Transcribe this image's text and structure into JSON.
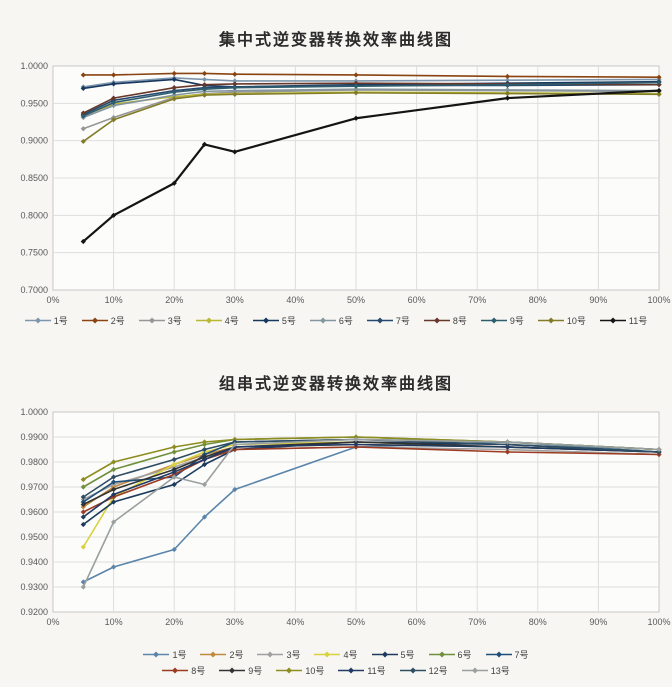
{
  "page": {
    "background": "#f7f6f3"
  },
  "chart_data": [
    {
      "type": "line",
      "title": "集中式逆变器转换效率曲线图",
      "xlabel": "",
      "ylabel": "",
      "x_ticks": [
        "0%",
        "10%",
        "20%",
        "30%",
        "40%",
        "50%",
        "60%",
        "70%",
        "80%",
        "90%",
        "100%"
      ],
      "x_range": [
        0,
        100
      ],
      "x": [
        5,
        10,
        20,
        25,
        30,
        50,
        75,
        100
      ],
      "ylim": [
        0.7,
        1.0
      ],
      "y_ticks": [
        "1.0000",
        "0.9500",
        "0.9000",
        "0.8500",
        "0.8000",
        "0.7500",
        "0.7000"
      ],
      "grid": true,
      "legend_position": "bottom",
      "legend_rows": [
        11
      ],
      "series": [
        {
          "name": "1号",
          "color": "#7d96ad",
          "values": [
            0.972,
            0.978,
            0.984,
            0.982,
            0.98,
            0.98,
            0.981,
            0.982
          ]
        },
        {
          "name": "2号",
          "color": "#8a4411",
          "values": [
            0.988,
            0.988,
            0.99,
            0.99,
            0.989,
            0.988,
            0.986,
            0.985
          ]
        },
        {
          "name": "3号",
          "color": "#969696",
          "values": [
            0.916,
            0.931,
            0.958,
            0.963,
            0.965,
            0.968,
            0.967,
            0.966
          ]
        },
        {
          "name": "4号",
          "color": "#b9b832",
          "values": [
            0.934,
            0.949,
            0.959,
            0.962,
            0.963,
            0.965,
            0.964,
            0.963
          ]
        },
        {
          "name": "5号",
          "color": "#17375e",
          "values": [
            0.97,
            0.976,
            0.982,
            0.974,
            0.972,
            0.975,
            0.977,
            0.979
          ]
        },
        {
          "name": "6号",
          "color": "#83959d",
          "values": [
            0.931,
            0.947,
            0.961,
            0.966,
            0.967,
            0.969,
            0.968,
            0.967
          ]
        },
        {
          "name": "7号",
          "color": "#27496d",
          "values": [
            0.935,
            0.954,
            0.967,
            0.971,
            0.972,
            0.974,
            0.974,
            0.975
          ]
        },
        {
          "name": "8号",
          "color": "#67372a",
          "values": [
            0.937,
            0.957,
            0.971,
            0.975,
            0.976,
            0.977,
            0.976,
            0.975
          ]
        },
        {
          "name": "9号",
          "color": "#2e5d6e",
          "values": [
            0.933,
            0.951,
            0.965,
            0.969,
            0.971,
            0.973,
            0.975,
            0.978
          ]
        },
        {
          "name": "10号",
          "color": "#827c28",
          "values": [
            0.899,
            0.928,
            0.956,
            0.961,
            0.962,
            0.964,
            0.963,
            0.962
          ]
        },
        {
          "name": "11号",
          "color": "#141414",
          "values": [
            0.765,
            0.8,
            0.843,
            0.895,
            0.885,
            0.93,
            0.957,
            0.967
          ]
        }
      ]
    },
    {
      "type": "line",
      "title": "组串式逆变器转换效率曲线图",
      "xlabel": "",
      "ylabel": "",
      "x_ticks": [
        "0%",
        "10%",
        "20%",
        "30%",
        "40%",
        "50%",
        "60%",
        "70%",
        "80%",
        "90%",
        "100%"
      ],
      "x_range": [
        0,
        100
      ],
      "x": [
        5,
        10,
        20,
        25,
        30,
        50,
        75,
        100
      ],
      "ylim": [
        0.92,
        1.0
      ],
      "y_ticks": [
        "1.0000",
        "0.9900",
        "0.9800",
        "0.9700",
        "0.9600",
        "0.9500",
        "0.9400",
        "0.9300",
        "0.9200"
      ],
      "grid": true,
      "legend_position": "bottom",
      "legend_rows": [
        7,
        6
      ],
      "series": [
        {
          "name": "1号",
          "color": "#5b85aa",
          "values": [
            0.932,
            0.938,
            0.945,
            0.958,
            0.969,
            0.986,
            0.988,
            0.984
          ]
        },
        {
          "name": "2号",
          "color": "#c08a3e",
          "values": [
            0.962,
            0.97,
            0.979,
            0.983,
            0.986,
            0.987,
            0.986,
            0.984
          ]
        },
        {
          "name": "3号",
          "color": "#a0a0a0",
          "values": [
            0.965,
            0.971,
            0.978,
            0.982,
            0.985,
            0.986,
            0.985,
            0.983
          ]
        },
        {
          "name": "4号",
          "color": "#d9d23f",
          "values": [
            0.946,
            0.966,
            0.979,
            0.984,
            0.987,
            0.988,
            0.986,
            0.984
          ]
        },
        {
          "name": "5号",
          "color": "#1b3a5c",
          "values": [
            0.955,
            0.964,
            0.971,
            0.979,
            0.985,
            0.988,
            0.987,
            0.984
          ]
        },
        {
          "name": "6号",
          "color": "#70903c",
          "values": [
            0.97,
            0.977,
            0.984,
            0.987,
            0.989,
            0.99,
            0.988,
            0.985
          ]
        },
        {
          "name": "7号",
          "color": "#1f4e79",
          "values": [
            0.964,
            0.972,
            0.974,
            0.983,
            0.988,
            0.989,
            0.988,
            0.985
          ]
        },
        {
          "name": "8号",
          "color": "#9c3b22",
          "values": [
            0.96,
            0.966,
            0.975,
            0.981,
            0.985,
            0.986,
            0.984,
            0.983
          ]
        },
        {
          "name": "9号",
          "color": "#333333",
          "values": [
            0.963,
            0.969,
            0.977,
            0.982,
            0.986,
            0.988,
            0.986,
            0.984
          ]
        },
        {
          "name": "10号",
          "color": "#8e8d21",
          "values": [
            0.973,
            0.98,
            0.986,
            0.988,
            0.989,
            0.99,
            0.988,
            0.985
          ]
        },
        {
          "name": "11号",
          "color": "#203b64",
          "values": [
            0.958,
            0.967,
            0.976,
            0.981,
            0.986,
            0.987,
            0.986,
            0.984
          ]
        },
        {
          "name": "12号",
          "color": "#2f4d63",
          "values": [
            0.966,
            0.974,
            0.981,
            0.985,
            0.988,
            0.989,
            0.987,
            0.984
          ]
        },
        {
          "name": "13号",
          "color": "#9aa0a0",
          "values": [
            0.93,
            0.956,
            0.974,
            0.971,
            0.987,
            0.989,
            0.988,
            0.985
          ]
        }
      ]
    }
  ]
}
